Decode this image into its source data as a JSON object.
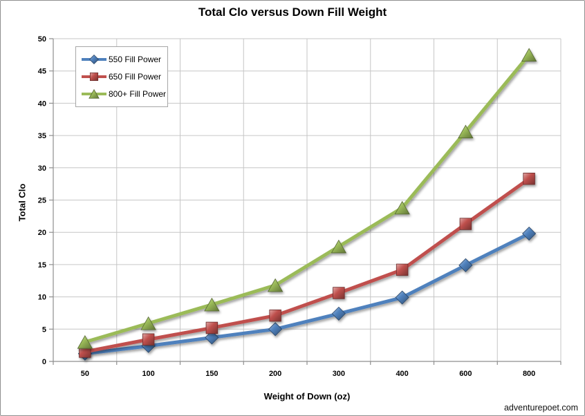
{
  "chart_data": {
    "type": "line",
    "title": "Total Clo versus Down Fill Weight",
    "xlabel": "Weight of Down (oz)",
    "ylabel": "Total Clo",
    "watermark": "adventurepoet.com",
    "categories": [
      50,
      100,
      150,
      200,
      300,
      400,
      600,
      800
    ],
    "yticks": [
      0,
      5,
      10,
      15,
      20,
      25,
      30,
      35,
      40,
      45,
      50
    ],
    "ylim": [
      0,
      50
    ],
    "grid": true,
    "legend_position": "top-left-inside",
    "grid_color": "#c6c6c6",
    "axis_color": "#8e8e8e",
    "series": [
      {
        "name": "550 Fill Power",
        "marker": "diamond",
        "color": "#4F81BD",
        "values": [
          1.2,
          2.4,
          3.7,
          5.0,
          7.4,
          9.9,
          14.9,
          19.8
        ]
      },
      {
        "name": "650 Fill Power",
        "marker": "square",
        "color": "#C0504D",
        "values": [
          1.5,
          3.4,
          5.2,
          7.1,
          10.6,
          14.2,
          21.3,
          28.3
        ]
      },
      {
        "name": "800+ Fill Power",
        "marker": "triangle",
        "color": "#9BBB59",
        "values": [
          3.0,
          5.9,
          8.8,
          11.8,
          17.8,
          23.8,
          35.6,
          47.5
        ]
      }
    ]
  }
}
